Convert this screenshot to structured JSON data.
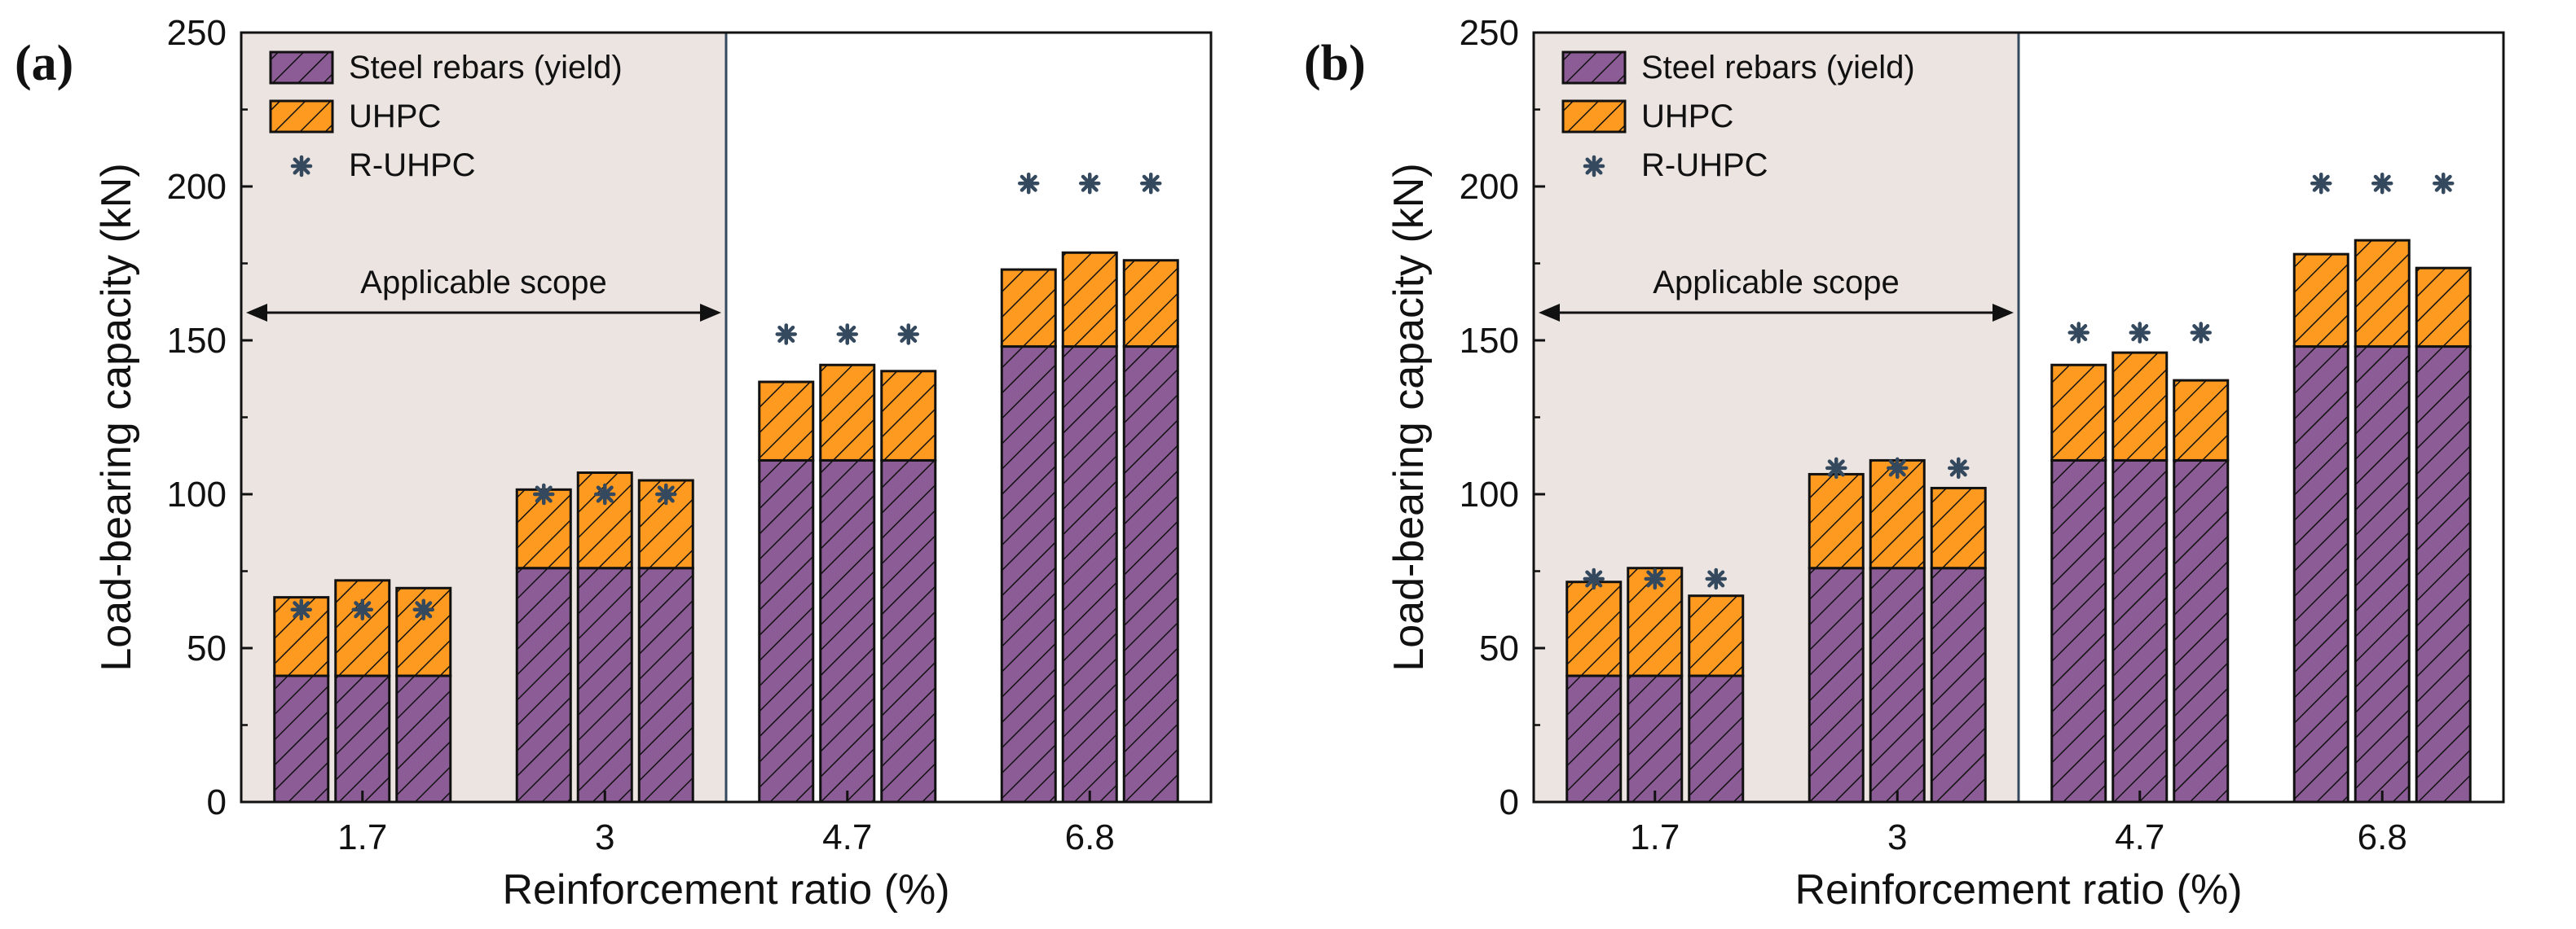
{
  "colors": {
    "steel": "#8B5C95",
    "uhpc": "#FF9A20",
    "marker": "#34495E",
    "scope_bg": "#ECE4E1",
    "divider": "#34495E"
  },
  "chart_data": [
    {
      "panel": "(a)",
      "type": "bar",
      "stacked": true,
      "xlabel": "Reinforcement ratio (%)",
      "ylabel": "Load-bearing capacity (kN)",
      "ylim": [
        0,
        250
      ],
      "yticks": [
        "0",
        "50",
        "100",
        "150",
        "200",
        "250"
      ],
      "categories": [
        "1.7",
        "3",
        "4.7",
        "6.8"
      ],
      "bars_per_group": 3,
      "scope_label": "Applicable scope",
      "legend": {
        "steel": "Steel rebars (yield)",
        "uhpc": "UHPC",
        "rup": "R-UHPC"
      },
      "series": [
        {
          "name": "Steel rebars (yield)",
          "values": [
            [
              41,
              41,
              41
            ],
            [
              76,
              76,
              76
            ],
            [
              111,
              111,
              111
            ],
            [
              148,
              148,
              148
            ]
          ]
        },
        {
          "name": "UHPC",
          "values": [
            [
              25.5,
              31,
              28.5
            ],
            [
              25.5,
              31,
              28.5
            ],
            [
              25.5,
              31,
              29
            ],
            [
              25,
              30.5,
              28
            ]
          ]
        },
        {
          "name": "R-UHPC",
          "values": [
            [
              62.5,
              62.5,
              62.5
            ],
            [
              100,
              100,
              100
            ],
            [
              152,
              152,
              152
            ],
            [
              201,
              201,
              201
            ]
          ]
        }
      ]
    },
    {
      "panel": "(b)",
      "type": "bar",
      "stacked": true,
      "xlabel": "Reinforcement ratio (%)",
      "ylabel": "Load-bearing capacity (kN)",
      "ylim": [
        0,
        250
      ],
      "yticks": [
        "0",
        "50",
        "100",
        "150",
        "200",
        "250"
      ],
      "categories": [
        "1.7",
        "3",
        "4.7",
        "6.8"
      ],
      "bars_per_group": 3,
      "scope_label": "Applicable scope",
      "legend": {
        "steel": "Steel rebars (yield)",
        "uhpc": "UHPC",
        "rup": "R-UHPC"
      },
      "series": [
        {
          "name": "Steel rebars (yield)",
          "values": [
            [
              41,
              41,
              41
            ],
            [
              76,
              76,
              76
            ],
            [
              111,
              111,
              111
            ],
            [
              148,
              148,
              148
            ]
          ]
        },
        {
          "name": "UHPC",
          "values": [
            [
              30.5,
              35,
              26
            ],
            [
              30.5,
              35,
              26
            ],
            [
              31,
              35,
              26
            ],
            [
              30,
              34.5,
              25.5
            ]
          ]
        },
        {
          "name": "R-UHPC",
          "values": [
            [
              72.5,
              72.5,
              72.5
            ],
            [
              108.5,
              108.5,
              108.5
            ],
            [
              152.5,
              152.5,
              152.5
            ],
            [
              201,
              201,
              201
            ]
          ]
        }
      ]
    }
  ]
}
